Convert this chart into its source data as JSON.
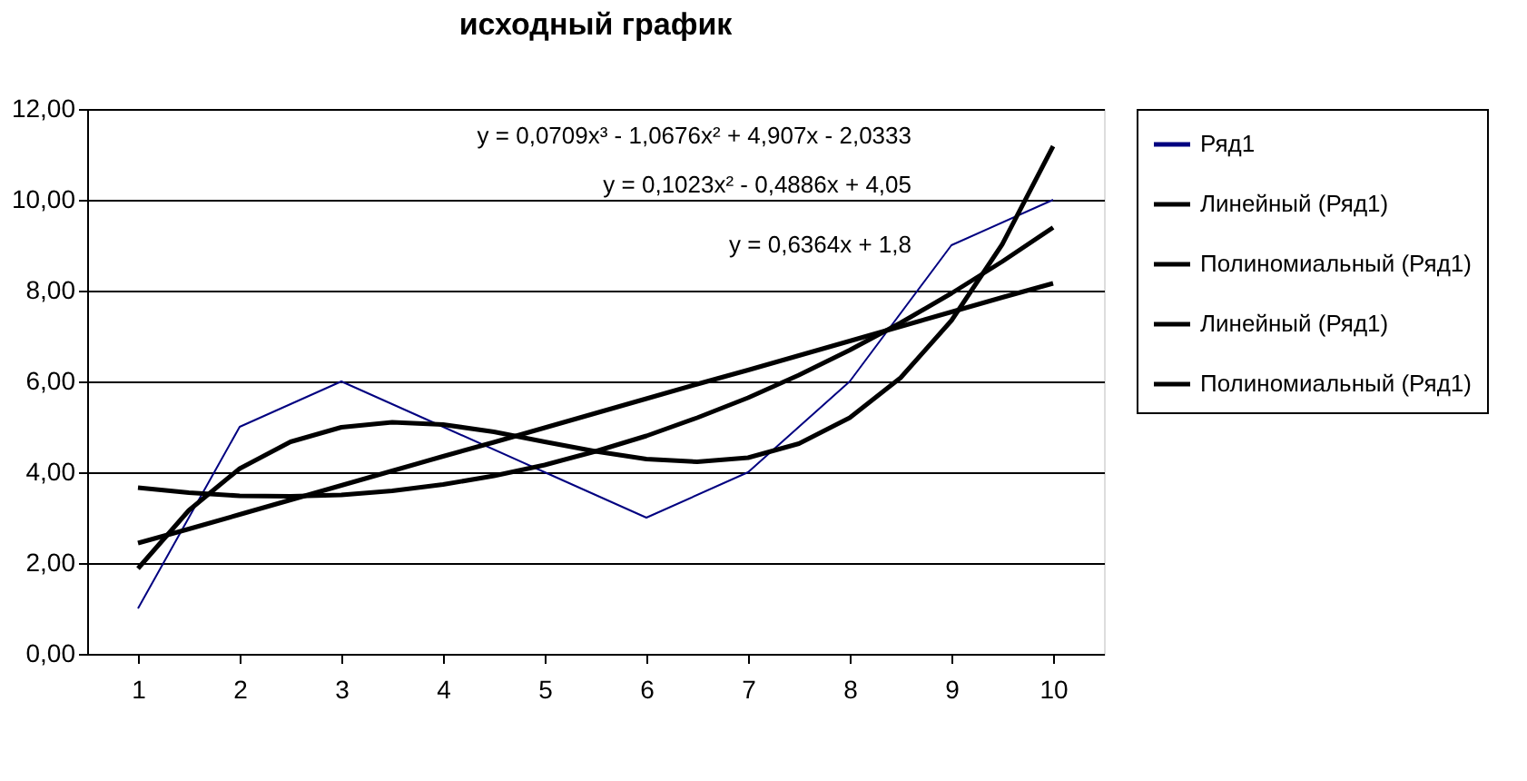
{
  "chart_data": {
    "type": "line",
    "title": "исходный график",
    "x": [
      1,
      2,
      3,
      4,
      5,
      6,
      7,
      8,
      9,
      10
    ],
    "xlim": [
      0.5,
      10.5
    ],
    "xticks": [
      1,
      2,
      3,
      4,
      5,
      6,
      7,
      8,
      9,
      10
    ],
    "series": [
      {
        "name": "Ряд1",
        "color": "#000080",
        "values": [
          1,
          5,
          6,
          5,
          4,
          3,
          4,
          6,
          9,
          10
        ]
      },
      {
        "name": "Линейный (Ряд1)",
        "color": "#000000",
        "x": [
          1,
          1.5,
          2,
          2.5,
          3,
          3.5,
          4,
          4.5,
          5,
          5.5,
          6,
          6.5,
          7,
          7.5,
          8,
          8.5,
          9,
          9.5,
          10
        ],
        "values": [
          2.44,
          2.75,
          3.07,
          3.39,
          3.71,
          4.03,
          4.35,
          4.66,
          4.98,
          5.3,
          5.62,
          5.94,
          6.25,
          6.57,
          6.89,
          7.21,
          7.53,
          7.85,
          8.16
        ]
      },
      {
        "name": "Полиномиальный (Ряд1)",
        "color": "#000000",
        "x": [
          1,
          1.5,
          2,
          2.5,
          3,
          3.5,
          4,
          4.5,
          5,
          5.5,
          6,
          6.5,
          7,
          7.5,
          8,
          8.5,
          9,
          9.5,
          10
        ],
        "values": [
          3.66,
          3.55,
          3.48,
          3.47,
          3.5,
          3.59,
          3.73,
          3.92,
          4.16,
          4.46,
          4.8,
          5.2,
          5.64,
          6.14,
          6.69,
          7.29,
          7.94,
          8.64,
          9.39
        ]
      },
      {
        "name": "Линейный (Ряд1)",
        "color": "#000000",
        "values": [
          null,
          null,
          null,
          null,
          null,
          null,
          null,
          null,
          null,
          null
        ]
      },
      {
        "name": "Полиномиальный (Ряд1)",
        "color": "#000000",
        "x": [
          1,
          1.5,
          2,
          2.5,
          3,
          3.5,
          4,
          4.5,
          5,
          5.5,
          6,
          6.5,
          7,
          7.5,
          8,
          8.5,
          9,
          9.5,
          10
        ],
        "values": [
          1.88,
          3.16,
          4.08,
          4.67,
          4.99,
          5.1,
          5.05,
          4.89,
          4.67,
          4.46,
          4.29,
          4.23,
          4.32,
          4.63,
          5.2,
          6.08,
          7.34,
          9.02,
          11.18
        ]
      }
    ],
    "ylim": [
      0,
      12
    ],
    "yticks": [
      {
        "value": 0,
        "label": "0,00"
      },
      {
        "value": 2,
        "label": "2,00"
      },
      {
        "value": 4,
        "label": "4,00"
      },
      {
        "value": 6,
        "label": "6,00"
      },
      {
        "value": 8,
        "label": "8,00"
      },
      {
        "value": 10,
        "label": "10,00"
      },
      {
        "value": 12,
        "label": "12,00"
      }
    ],
    "grid": "y",
    "legend": "right",
    "marker": "none",
    "line_style": "solid",
    "annotations": [
      "y = 0,0709x³ - 1,0676x² + 4,907x - 2,0333",
      "y = 0,1023x² - 0,4886x + 4,05",
      "y = 0,6364x + 1,8"
    ]
  }
}
